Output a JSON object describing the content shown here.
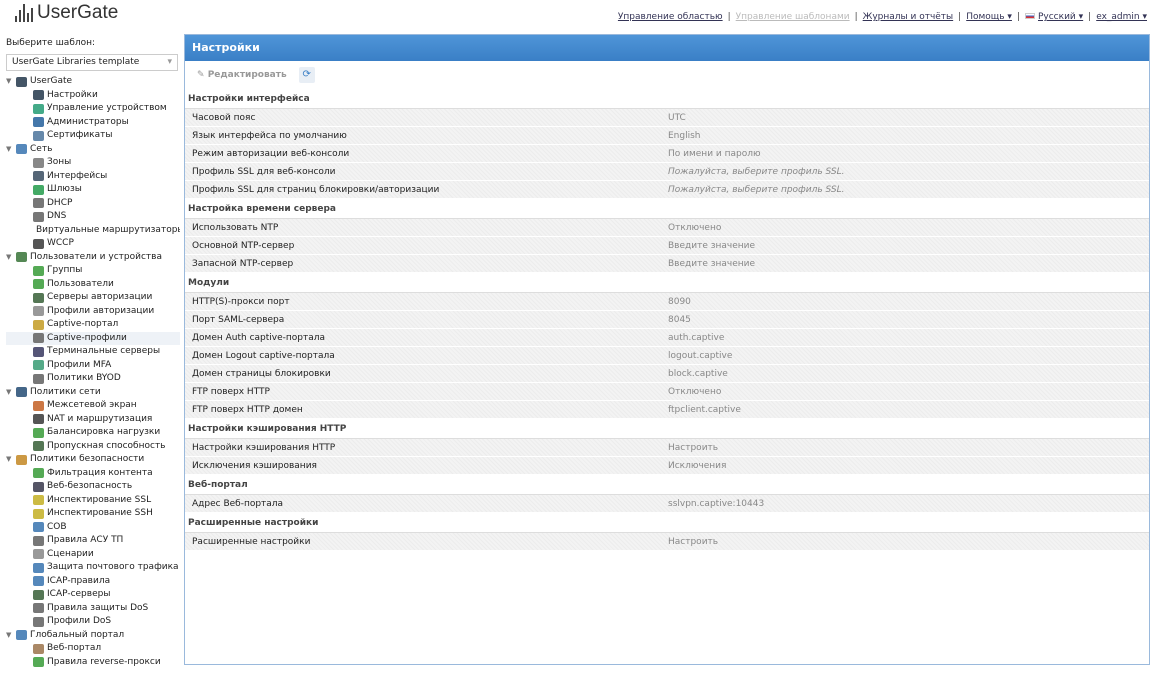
{
  "header": {
    "logo": "UserGate",
    "nav": [
      {
        "label": "Управление областью",
        "disabled": false
      },
      {
        "label": "Управление шаблонами",
        "disabled": true
      },
      {
        "label": "Журналы и отчёты",
        "disabled": false
      },
      {
        "label": "Помощь ▾",
        "disabled": false
      },
      {
        "label": "Русский ▾",
        "disabled": false,
        "flag": true
      },
      {
        "label": "ex_admin ▾",
        "disabled": false
      }
    ]
  },
  "sidebar": {
    "template_label": "Выберите шаблон:",
    "template_value": "UserGate Libraries template",
    "tree": [
      {
        "label": "UserGate",
        "level": 0,
        "color": "#456"
      },
      {
        "label": "Настройки",
        "level": 1,
        "color": "#456"
      },
      {
        "label": "Управление устройством",
        "level": 1,
        "color": "#4a8"
      },
      {
        "label": "Администраторы",
        "level": 1,
        "color": "#47a"
      },
      {
        "label": "Сертификаты",
        "level": 1,
        "color": "#68a"
      },
      {
        "label": "Сеть",
        "level": 0,
        "color": "#58b"
      },
      {
        "label": "Зоны",
        "level": 1,
        "color": "#888"
      },
      {
        "label": "Интерфейсы",
        "level": 1,
        "color": "#567"
      },
      {
        "label": "Шлюзы",
        "level": 1,
        "color": "#4a6"
      },
      {
        "label": "DHCP",
        "level": 1,
        "color": "#777"
      },
      {
        "label": "DNS",
        "level": 1,
        "color": "#777"
      },
      {
        "label": "Виртуальные маршрутизаторы",
        "level": 1,
        "color": "#6a4"
      },
      {
        "label": "WCCP",
        "level": 1,
        "color": "#555"
      },
      {
        "label": "Пользователи и устройства",
        "level": 0,
        "color": "#585"
      },
      {
        "label": "Группы",
        "level": 1,
        "color": "#5a5"
      },
      {
        "label": "Пользователи",
        "level": 1,
        "color": "#5a5"
      },
      {
        "label": "Серверы авторизации",
        "level": 1,
        "color": "#575"
      },
      {
        "label": "Профили авторизации",
        "level": 1,
        "color": "#999"
      },
      {
        "label": "Captive-портал",
        "level": 1,
        "color": "#ca4"
      },
      {
        "label": "Captive-профили",
        "level": 1,
        "color": "#777"
      },
      {
        "label": "Терминальные серверы",
        "level": 1,
        "color": "#557"
      },
      {
        "label": "Профили MFA",
        "level": 1,
        "color": "#5a8"
      },
      {
        "label": "Политики BYOD",
        "level": 1,
        "color": "#777"
      },
      {
        "label": "Политики сети",
        "level": 0,
        "color": "#468"
      },
      {
        "label": "Межсетевой экран",
        "level": 1,
        "color": "#c74"
      },
      {
        "label": "NAT и маршрутизация",
        "level": 1,
        "color": "#555"
      },
      {
        "label": "Балансировка нагрузки",
        "level": 1,
        "color": "#5a5"
      },
      {
        "label": "Пропускная способность",
        "level": 1,
        "color": "#575"
      },
      {
        "label": "Политики безопасности",
        "level": 0,
        "color": "#c94"
      },
      {
        "label": "Фильтрация контента",
        "level": 1,
        "color": "#5a5"
      },
      {
        "label": "Веб-безопасность",
        "level": 1,
        "color": "#556"
      },
      {
        "label": "Инспектирование SSL",
        "level": 1,
        "color": "#cb4"
      },
      {
        "label": "Инспектирование SSH",
        "level": 1,
        "color": "#cb4"
      },
      {
        "label": "СОВ",
        "level": 1,
        "color": "#58b"
      },
      {
        "label": "Правила АСУ ТП",
        "level": 1,
        "color": "#777"
      },
      {
        "label": "Сценарии",
        "level": 1,
        "color": "#999"
      },
      {
        "label": "Защита почтового трафика",
        "level": 1,
        "color": "#58b"
      },
      {
        "label": "ICAP-правила",
        "level": 1,
        "color": "#58b"
      },
      {
        "label": "ICAP-серверы",
        "level": 1,
        "color": "#575"
      },
      {
        "label": "Правила защиты DoS",
        "level": 1,
        "color": "#777"
      },
      {
        "label": "Профили DoS",
        "level": 1,
        "color": "#777"
      },
      {
        "label": "Глобальный портал",
        "level": 0,
        "color": "#58b"
      },
      {
        "label": "Веб-портал",
        "level": 1,
        "color": "#a86"
      },
      {
        "label": "Правила reverse-прокси",
        "level": 1,
        "color": "#5a5"
      }
    ]
  },
  "panel": {
    "title": "Настройки",
    "edit_label": "Редактировать",
    "sections": [
      {
        "title": "Настройки интерфейса",
        "rows": [
          [
            "Часовой пояс",
            "UTC",
            false
          ],
          [
            "Язык интерфейса по умолчанию",
            "English",
            false
          ],
          [
            "Режим авторизации веб-консоли",
            "По имени и паролю",
            false
          ],
          [
            "Профиль SSL для веб-консоли",
            "Пожалуйста, выберите профиль SSL.",
            true
          ],
          [
            "Профиль SSL для страниц блокировки/авторизации",
            "Пожалуйста, выберите профиль SSL.",
            true
          ]
        ]
      },
      {
        "title": "Настройка времени сервера",
        "rows": [
          [
            "Использовать NTP",
            "Отключено",
            false
          ],
          [
            "Основной NTP-сервер",
            "Введите значение",
            false
          ],
          [
            "Запасной NTP-сервер",
            "Введите значение",
            false
          ]
        ]
      },
      {
        "title": "Модули",
        "rows": [
          [
            "HTTP(S)-прокси порт",
            "8090",
            false
          ],
          [
            "Порт SAML-сервера",
            "8045",
            false
          ],
          [
            "Домен Auth captive-портала",
            "auth.captive",
            false
          ],
          [
            "Домен Logout captive-портала",
            "logout.captive",
            false
          ],
          [
            "Домен страницы блокировки",
            "block.captive",
            false
          ],
          [
            "FTP поверх HTTP",
            "Отключено",
            false
          ],
          [
            "FTP поверх HTTP домен",
            "ftpclient.captive",
            false
          ]
        ]
      },
      {
        "title": "Настройки кэширования HTTP",
        "rows": [
          [
            "Настройки кэширования HTTP",
            "Настроить",
            false
          ],
          [
            "Исключения кэширования",
            "Исключения",
            false
          ]
        ]
      },
      {
        "title": "Веб-портал",
        "rows": [
          [
            "Адрес Веб-портала",
            "sslvpn.captive:10443",
            false
          ]
        ]
      },
      {
        "title": "Расширенные настройки",
        "rows": [
          [
            "Расширенные настройки",
            "Настроить",
            false
          ]
        ]
      }
    ]
  }
}
